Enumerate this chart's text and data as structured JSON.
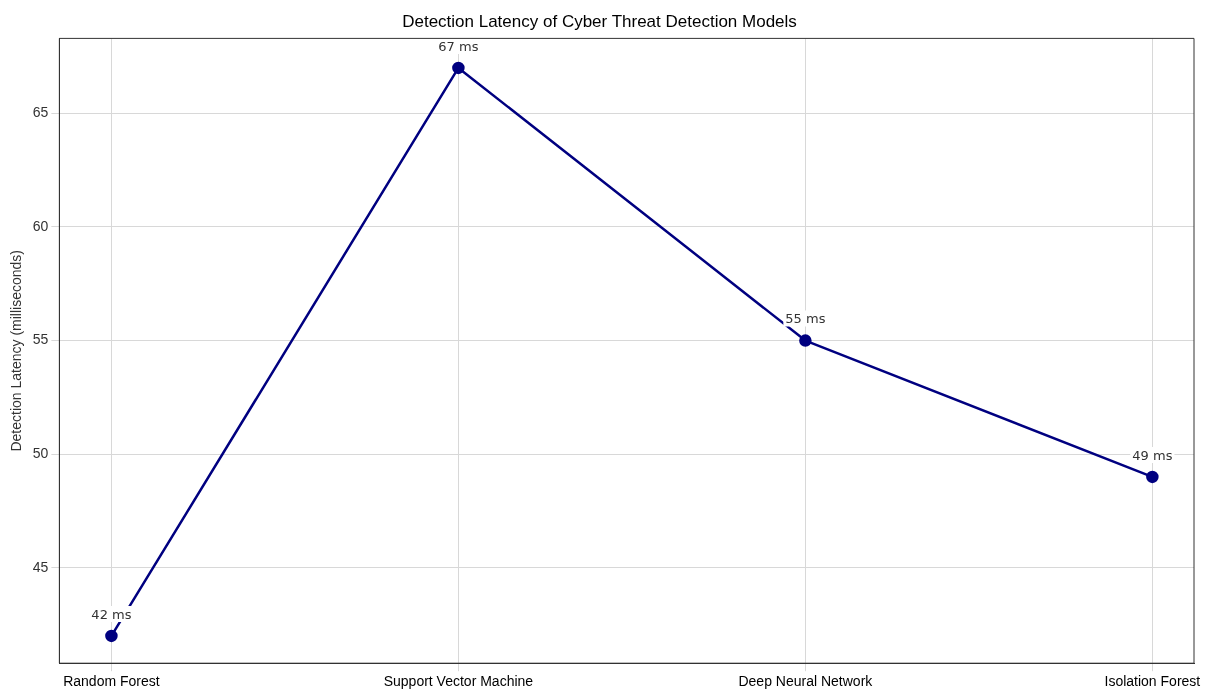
{
  "chart_data": {
    "type": "line",
    "title": "Detection Latency of Cyber Threat Detection Models",
    "ylabel": "Detection Latency (milliseconds)",
    "categories": [
      "Random Forest",
      "Support Vector Machine",
      "Deep Neural Network",
      "Isolation Forest"
    ],
    "series": [
      {
        "color": "#000080",
        "values": [
          42,
          67,
          55,
          49
        ],
        "value_labels": [
          "42 ms",
          "67 ms",
          "55 ms",
          "49 ms"
        ]
      }
    ],
    "ylim": [
      40.8,
      68.3
    ],
    "yticks": [
      45,
      50,
      55,
      60,
      65
    ],
    "grid": true,
    "legend": false,
    "marker": "circle",
    "line_style": "solid"
  }
}
